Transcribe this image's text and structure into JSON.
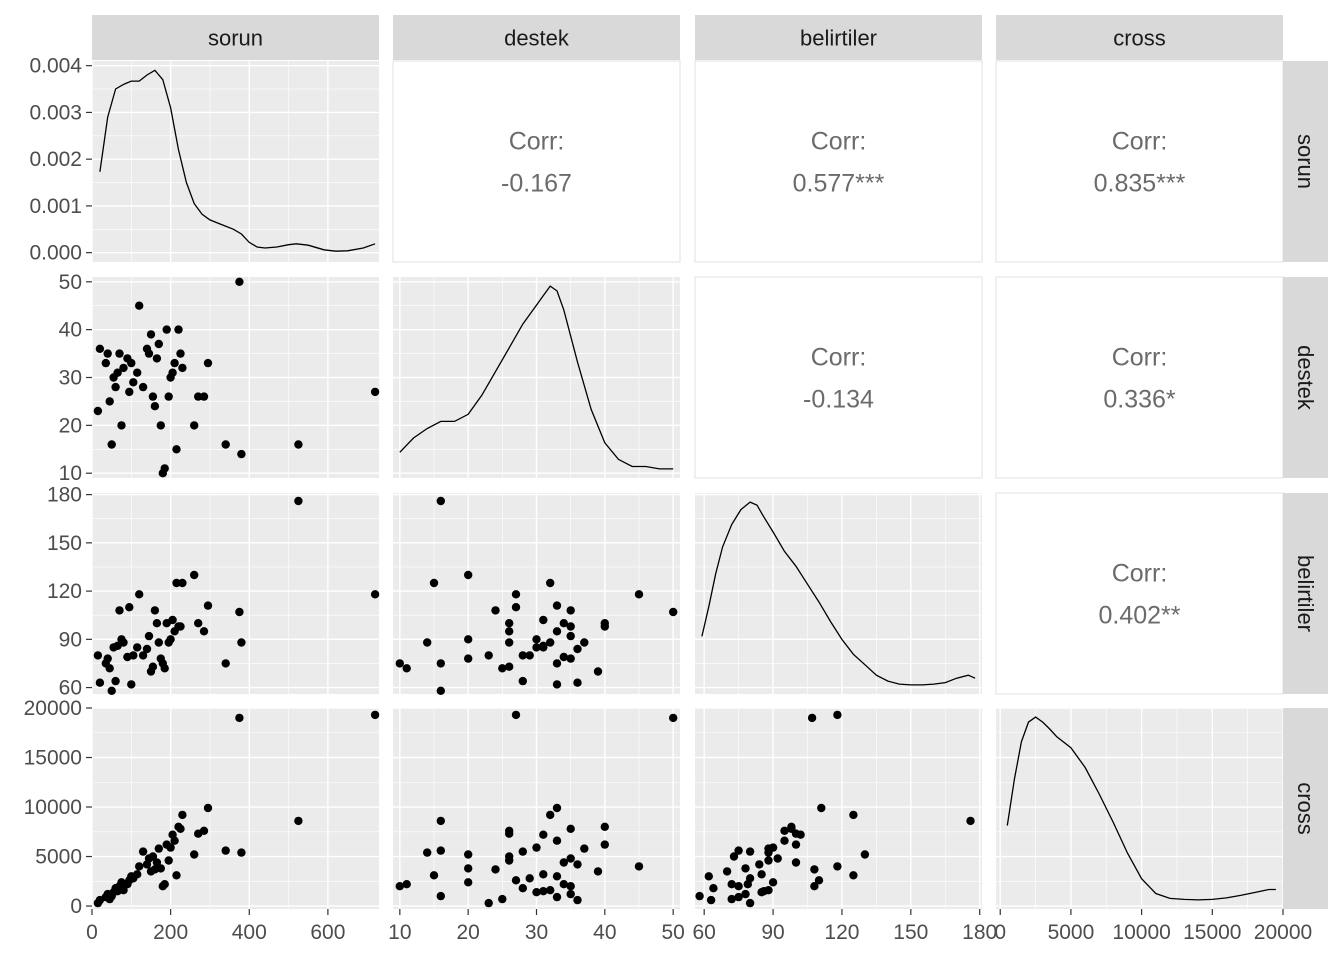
{
  "chart_data": {
    "type": "scatter",
    "title": "",
    "layout": "pairs-matrix",
    "variables": [
      {
        "name": "sorun",
        "range": [
          0,
          730
        ],
        "ticks": [
          0,
          200,
          400,
          600
        ],
        "tick_labels": [
          "0",
          "200",
          "400",
          "600"
        ]
      },
      {
        "name": "destek",
        "range": [
          9,
          51
        ],
        "ticks": [
          10,
          20,
          30,
          40,
          50
        ],
        "tick_labels": [
          "10",
          "20",
          "30",
          "40",
          "50"
        ]
      },
      {
        "name": "belirtiler",
        "range": [
          56,
          181
        ],
        "ticks": [
          60,
          90,
          120,
          150,
          180
        ],
        "tick_labels": [
          "60",
          "90",
          "120",
          "150",
          "180"
        ]
      },
      {
        "name": "cross",
        "range": [
          -300,
          20000
        ],
        "ticks": [
          0,
          5000,
          10000,
          15000,
          20000
        ],
        "tick_labels": [
          "0",
          "5000",
          "10000",
          "15000",
          "20000"
        ]
      }
    ],
    "density_axis": {
      "range": [
        -0.0002,
        0.0041
      ],
      "ticks": [
        0,
        0.001,
        0.002,
        0.003,
        0.004
      ],
      "tick_labels": [
        "0.000",
        "0.001",
        "0.002",
        "0.003",
        "0.004"
      ]
    },
    "correlations": [
      {
        "row": 0,
        "col": 1,
        "label": "Corr:",
        "value": "-0.167"
      },
      {
        "row": 0,
        "col": 2,
        "label": "Corr:",
        "value": "0.577***"
      },
      {
        "row": 0,
        "col": 3,
        "label": "Corr:",
        "value": "0.835***"
      },
      {
        "row": 1,
        "col": 2,
        "label": "Corr:",
        "value": "-0.134"
      },
      {
        "row": 1,
        "col": 3,
        "label": "Corr:",
        "value": "0.336*"
      },
      {
        "row": 2,
        "col": 3,
        "label": "Corr:",
        "value": "0.402**"
      }
    ],
    "densities": [
      [
        [
          20,
          0.00173
        ],
        [
          40,
          0.0029
        ],
        [
          60,
          0.0035
        ],
        [
          80,
          0.0036
        ],
        [
          100,
          0.00367
        ],
        [
          120,
          0.00367
        ],
        [
          140,
          0.0038
        ],
        [
          160,
          0.0039
        ],
        [
          180,
          0.0037
        ],
        [
          200,
          0.0031
        ],
        [
          220,
          0.0022
        ],
        [
          240,
          0.0015
        ],
        [
          260,
          0.00105
        ],
        [
          280,
          0.00082
        ],
        [
          300,
          0.0007
        ],
        [
          330,
          0.0006
        ],
        [
          360,
          0.0005
        ],
        [
          380,
          0.0004
        ],
        [
          400,
          0.00022
        ],
        [
          420,
          0.00012
        ],
        [
          440,
          0.0001
        ],
        [
          470,
          0.00012
        ],
        [
          500,
          0.00017
        ],
        [
          520,
          0.00019
        ],
        [
          550,
          0.00016
        ],
        [
          590,
          6e-05
        ],
        [
          620,
          3e-05
        ],
        [
          650,
          4e-05
        ],
        [
          690,
          0.0001
        ],
        [
          720,
          0.00019
        ]
      ],
      [
        [
          10,
          0.15
        ],
        [
          12,
          0.18
        ],
        [
          14,
          0.2
        ],
        [
          16,
          0.215
        ],
        [
          18,
          0.215
        ],
        [
          20,
          0.23
        ],
        [
          22,
          0.27
        ],
        [
          24,
          0.32
        ],
        [
          26,
          0.37
        ],
        [
          28,
          0.42
        ],
        [
          30,
          0.46
        ],
        [
          31,
          0.48
        ],
        [
          32,
          0.5
        ],
        [
          33,
          0.49
        ],
        [
          34,
          0.45
        ],
        [
          36,
          0.34
        ],
        [
          38,
          0.24
        ],
        [
          40,
          0.17
        ],
        [
          42,
          0.135
        ],
        [
          44,
          0.12
        ],
        [
          46,
          0.12
        ],
        [
          48,
          0.115
        ],
        [
          50,
          0.115
        ]
      ],
      [
        [
          59,
          0.09
        ],
        [
          62,
          0.11
        ],
        [
          65,
          0.132
        ],
        [
          68,
          0.15
        ],
        [
          72,
          0.165
        ],
        [
          76,
          0.175
        ],
        [
          80,
          0.18
        ],
        [
          83,
          0.178
        ],
        [
          86,
          0.17
        ],
        [
          90,
          0.16
        ],
        [
          95,
          0.147
        ],
        [
          100,
          0.137
        ],
        [
          105,
          0.125
        ],
        [
          110,
          0.113
        ],
        [
          115,
          0.1
        ],
        [
          120,
          0.088
        ],
        [
          125,
          0.078
        ],
        [
          130,
          0.071
        ],
        [
          135,
          0.064
        ],
        [
          140,
          0.06
        ],
        [
          145,
          0.058
        ],
        [
          150,
          0.0575
        ],
        [
          155,
          0.0575
        ],
        [
          160,
          0.058
        ],
        [
          165,
          0.059
        ],
        [
          170,
          0.062
        ],
        [
          175,
          0.064
        ],
        [
          178,
          0.062
        ]
      ],
      [
        [
          500,
          0.0086
        ],
        [
          1000,
          0.0133
        ],
        [
          1500,
          0.0171
        ],
        [
          2000,
          0.0191
        ],
        [
          2500,
          0.0196
        ],
        [
          3000,
          0.0191
        ],
        [
          3500,
          0.0184
        ],
        [
          4000,
          0.0176
        ],
        [
          5000,
          0.0165
        ],
        [
          6000,
          0.0145
        ],
        [
          7000,
          0.0118
        ],
        [
          8000,
          0.0089
        ],
        [
          9000,
          0.0058
        ],
        [
          10000,
          0.0032
        ],
        [
          11000,
          0.0017
        ],
        [
          12000,
          0.0012
        ],
        [
          13000,
          0.0011
        ],
        [
          14000,
          0.00105
        ],
        [
          15000,
          0.0011
        ],
        [
          16000,
          0.00125
        ],
        [
          17000,
          0.0015
        ],
        [
          18000,
          0.0018
        ],
        [
          19000,
          0.0021
        ],
        [
          19500,
          0.0021
        ]
      ]
    ],
    "observations": [
      [
        15,
        23,
        80,
        300
      ],
      [
        20,
        36,
        63,
        600
      ],
      [
        35,
        33,
        75,
        900
      ],
      [
        40,
        35,
        78,
        1200
      ],
      [
        45,
        25,
        72,
        700
      ],
      [
        50,
        16,
        58,
        1000
      ],
      [
        55,
        30,
        85,
        1400
      ],
      [
        60,
        28,
        64,
        1800
      ],
      [
        65,
        31,
        86,
        1500
      ],
      [
        70,
        35,
        108,
        2000
      ],
      [
        75,
        20,
        90,
        2400
      ],
      [
        80,
        32,
        88,
        1600
      ],
      [
        90,
        34,
        79,
        2200
      ],
      [
        95,
        27,
        110,
        2600
      ],
      [
        100,
        33,
        62,
        3000
      ],
      [
        105,
        29,
        80,
        2800
      ],
      [
        115,
        31,
        85,
        3200
      ],
      [
        120,
        45,
        118,
        4000
      ],
      [
        130,
        28,
        80,
        5500
      ],
      [
        140,
        36,
        84,
        4200
      ],
      [
        145,
        35,
        92,
        4800
      ],
      [
        150,
        39,
        70,
        3500
      ],
      [
        155,
        26,
        73,
        5000
      ],
      [
        160,
        24,
        108,
        3700
      ],
      [
        165,
        34,
        100,
        4400
      ],
      [
        170,
        37,
        88,
        5800
      ],
      [
        175,
        20,
        78,
        3800
      ],
      [
        180,
        10,
        75,
        2000
      ],
      [
        185,
        11,
        72,
        2200
      ],
      [
        190,
        40,
        100,
        6200
      ],
      [
        195,
        26,
        88,
        4600
      ],
      [
        200,
        30,
        90,
        5900
      ],
      [
        205,
        31,
        102,
        7200
      ],
      [
        210,
        33,
        95,
        6600
      ],
      [
        215,
        15,
        125,
        3100
      ],
      [
        220,
        40,
        98,
        8000
      ],
      [
        225,
        35,
        98,
        7800
      ],
      [
        230,
        32,
        125,
        9200
      ],
      [
        260,
        20,
        130,
        5200
      ],
      [
        270,
        26,
        100,
        7300
      ],
      [
        285,
        26,
        95,
        7600
      ],
      [
        295,
        33,
        111,
        9900
      ],
      [
        340,
        16,
        75,
        5600
      ],
      [
        375,
        50,
        107,
        19000
      ],
      [
        380,
        14,
        88,
        5400
      ],
      [
        525,
        16,
        176,
        8600
      ],
      [
        720,
        27,
        118,
        19300
      ]
    ]
  }
}
